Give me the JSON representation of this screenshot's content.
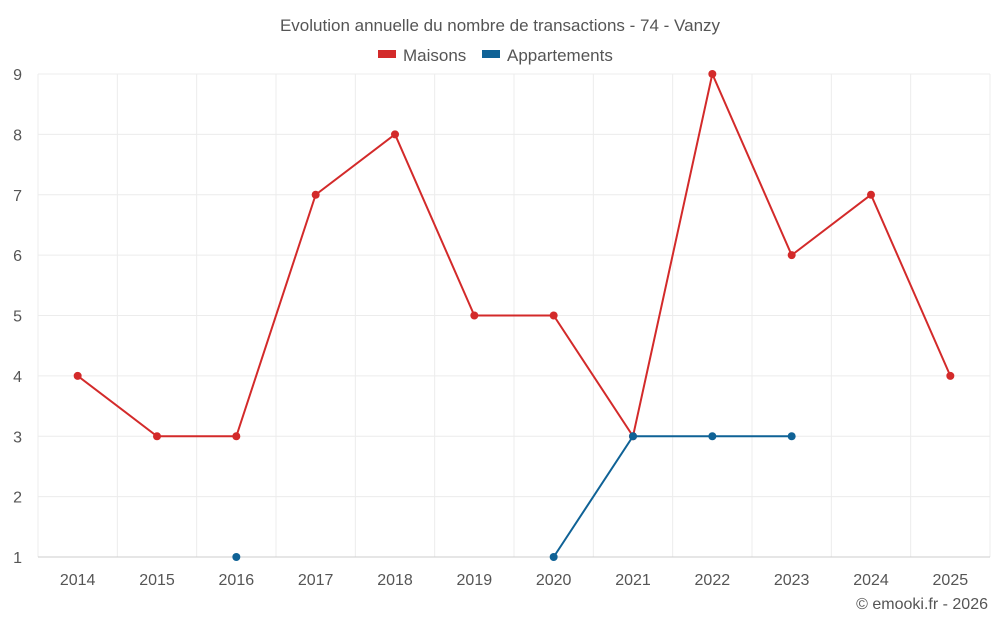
{
  "chart_data": {
    "type": "line",
    "title": "Evolution annuelle du nombre de transactions - 74 - Vanzy",
    "categories": [
      "2014",
      "2015",
      "2016",
      "2017",
      "2018",
      "2019",
      "2020",
      "2021",
      "2022",
      "2023",
      "2024",
      "2025"
    ],
    "series": [
      {
        "name": "Maisons",
        "color": "#d32a2a",
        "values": [
          4,
          3,
          3,
          7,
          8,
          5,
          5,
          3,
          9,
          6,
          7,
          4
        ]
      },
      {
        "name": "Appartements",
        "color": "#0f6296",
        "values": [
          null,
          null,
          1,
          null,
          null,
          null,
          1,
          3,
          3,
          3,
          null,
          null
        ]
      }
    ],
    "yticks": [
      1,
      2,
      3,
      4,
      5,
      6,
      7,
      8,
      9
    ],
    "ylim": [
      1,
      9
    ],
    "grid": true,
    "legend_position": "top-center"
  },
  "credit": "© emooki.fr - 2026"
}
